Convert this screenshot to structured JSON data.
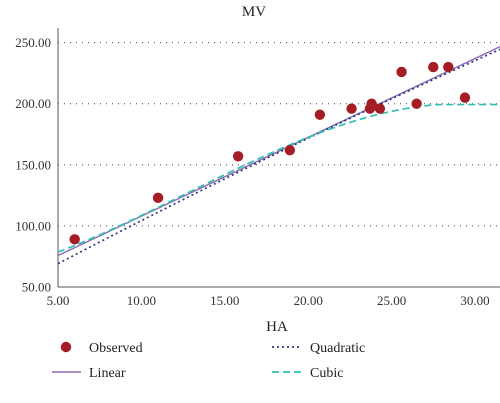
{
  "chart_data": {
    "type": "scatter",
    "title": "MV",
    "xlabel": "HA",
    "ylabel": "",
    "xlim": [
      5,
      31.5
    ],
    "ylim": [
      50,
      262
    ],
    "x_ticks": [
      5,
      10,
      15,
      20,
      25,
      30
    ],
    "y_ticks": [
      50,
      100,
      150,
      200,
      250
    ],
    "x_tick_labels": [
      "5.00",
      "10.00",
      "15.00",
      "20.00",
      "25.00",
      "30.00"
    ],
    "y_tick_labels": [
      "50.00",
      "100.00",
      "150.00",
      "200.00",
      "250.00"
    ],
    "grid": "horizontal dotted",
    "observed": {
      "name": "Observed",
      "color": "#a51c24",
      "x": [
        6.0,
        11.0,
        15.8,
        18.9,
        20.7,
        22.6,
        23.7,
        23.8,
        24.3,
        25.6,
        26.5,
        27.5,
        28.4,
        29.4
      ],
      "y": [
        89,
        123,
        157,
        162,
        191,
        196,
        196,
        200,
        196,
        226,
        200,
        230,
        230,
        205
      ]
    },
    "fits": [
      {
        "name": "Linear",
        "style": "solid",
        "color": "#8c6bb1",
        "coef": [
          43.5,
          6.45
        ]
      },
      {
        "name": "Quadratic",
        "style": "dotted",
        "color": "#2b3a7a",
        "coef": [
          32.8,
          7.35,
          -0.02
        ]
      },
      {
        "name": "Cubic",
        "style": "dashed",
        "color": "#2fbfb3",
        "coef": [
          58.5,
          2.6,
          0.325,
          -0.0085
        ],
        "plateau_from": 27.8
      }
    ],
    "legend": {
      "placement": "bottom",
      "items": [
        {
          "label": "Observed",
          "marker": "circle",
          "color": "#a51c24"
        },
        {
          "label": "Quadratic",
          "marker": "dotted",
          "color": "#2b3a7a"
        },
        {
          "label": "Linear",
          "marker": "solid",
          "color": "#8c6bb1"
        },
        {
          "label": "Cubic",
          "marker": "dashed",
          "color": "#2fbfb3"
        }
      ]
    }
  }
}
